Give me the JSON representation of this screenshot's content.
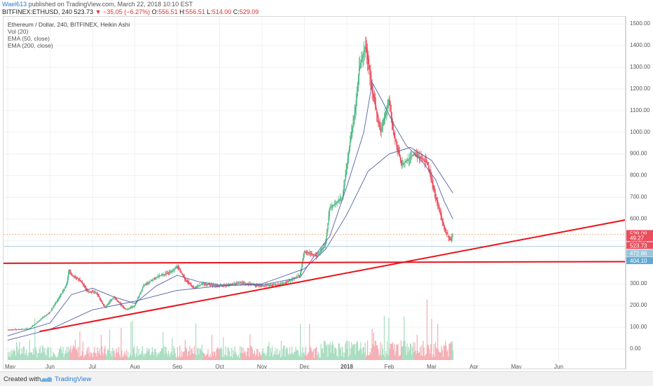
{
  "header": {
    "author": "Wael613",
    "published": "published on TradingView.com, March 22, 2018 10:10 EST",
    "symbol": "BITFINEX:ETHUSD, 240",
    "price": "523.73",
    "change": "−35.05 (−6.27%)",
    "o_label": "O:",
    "o_val": "556.51",
    "h_label": "H:",
    "h_val": "556.51",
    "l_label": "L:",
    "l_val": "514.00",
    "c_label": "C:",
    "c_val": "529.09"
  },
  "legend": {
    "title": "Ethereum / Dollar, 240, BITFINEX, Heikin Ashi",
    "vol": "Vol (20)",
    "ema50": "EMA (50, close)",
    "ema200": "EMA (200, close)"
  },
  "footer": {
    "created": "Created with",
    "brand": "TradingView"
  },
  "colors": {
    "up": "#53b987",
    "down": "#eb4d5c",
    "trend": "#e8141c",
    "ema": "#5462a8"
  },
  "chart_data": {
    "type": "candlestick",
    "y_ticks": [
      0,
      100,
      200,
      300,
      400,
      500,
      600,
      700,
      800,
      900,
      1000,
      1100,
      1200,
      1300,
      1400,
      1500
    ],
    "y_tick_labels": [
      "0.00",
      "100.00",
      "200.00",
      "300.00",
      "400.00",
      "500.00",
      "600.00",
      "700.00",
      "800.00",
      "900.00",
      "1000.00",
      "1100.00",
      "1200.00",
      "1300.00",
      "1400.00",
      "1500.00"
    ],
    "ylim": [
      -70,
      1520
    ],
    "x_ticks": [
      "May",
      "Jun",
      "Jul",
      "Aug",
      "Sep",
      "Oct",
      "Nov",
      "Dec",
      "2018",
      "Feb",
      "Mar",
      "Apr",
      "May",
      "Jun"
    ],
    "price_path": [
      {
        "t": 0,
        "p": 88
      },
      {
        "t": 0.5,
        "p": 92
      },
      {
        "t": 1,
        "p": 170
      },
      {
        "t": 1.2,
        "p": 230
      },
      {
        "t": 1.4,
        "p": 300
      },
      {
        "t": 1.45,
        "p": 370
      },
      {
        "t": 1.5,
        "p": 340
      },
      {
        "t": 1.7,
        "p": 320
      },
      {
        "t": 1.9,
        "p": 265
      },
      {
        "t": 2.1,
        "p": 260
      },
      {
        "t": 2.3,
        "p": 190
      },
      {
        "t": 2.5,
        "p": 240
      },
      {
        "t": 2.8,
        "p": 180
      },
      {
        "t": 3.0,
        "p": 200
      },
      {
        "t": 3.2,
        "p": 290
      },
      {
        "t": 3.5,
        "p": 330
      },
      {
        "t": 3.9,
        "p": 360
      },
      {
        "t": 4.0,
        "p": 380
      },
      {
        "t": 4.2,
        "p": 320
      },
      {
        "t": 4.4,
        "p": 280
      },
      {
        "t": 4.6,
        "p": 300
      },
      {
        "t": 5.0,
        "p": 290
      },
      {
        "t": 5.5,
        "p": 305
      },
      {
        "t": 6.0,
        "p": 290
      },
      {
        "t": 6.5,
        "p": 300
      },
      {
        "t": 6.9,
        "p": 340
      },
      {
        "t": 7.0,
        "p": 450
      },
      {
        "t": 7.3,
        "p": 430
      },
      {
        "t": 7.5,
        "p": 480
      },
      {
        "t": 7.6,
        "p": 650
      },
      {
        "t": 7.9,
        "p": 700
      },
      {
        "t": 8.1,
        "p": 980
      },
      {
        "t": 8.2,
        "p": 1100
      },
      {
        "t": 8.3,
        "p": 1300
      },
      {
        "t": 8.45,
        "p": 1400
      },
      {
        "t": 8.6,
        "p": 1200
      },
      {
        "t": 8.8,
        "p": 1000
      },
      {
        "t": 9.0,
        "p": 1150
      },
      {
        "t": 9.1,
        "p": 1000
      },
      {
        "t": 9.3,
        "p": 850
      },
      {
        "t": 9.6,
        "p": 900
      },
      {
        "t": 9.9,
        "p": 860
      },
      {
        "t": 10.1,
        "p": 700
      },
      {
        "t": 10.3,
        "p": 560
      },
      {
        "t": 10.45,
        "p": 500
      },
      {
        "t": 10.5,
        "p": 523.73
      }
    ],
    "ema50": [
      {
        "t": 0,
        "p": 60
      },
      {
        "t": 1,
        "p": 120
      },
      {
        "t": 1.5,
        "p": 250
      },
      {
        "t": 2,
        "p": 280
      },
      {
        "t": 2.5,
        "p": 240
      },
      {
        "t": 3,
        "p": 210
      },
      {
        "t": 3.5,
        "p": 290
      },
      {
        "t": 4,
        "p": 340
      },
      {
        "t": 4.5,
        "p": 310
      },
      {
        "t": 5,
        "p": 295
      },
      {
        "t": 6,
        "p": 295
      },
      {
        "t": 6.9,
        "p": 330
      },
      {
        "t": 7.2,
        "p": 420
      },
      {
        "t": 7.6,
        "p": 520
      },
      {
        "t": 8.0,
        "p": 750
      },
      {
        "t": 8.4,
        "p": 1000
      },
      {
        "t": 8.6,
        "p": 1230
      },
      {
        "t": 8.85,
        "p": 1140
      },
      {
        "t": 9.1,
        "p": 1040
      },
      {
        "t": 9.4,
        "p": 940
      },
      {
        "t": 9.8,
        "p": 860
      },
      {
        "t": 10.1,
        "p": 780
      },
      {
        "t": 10.3,
        "p": 680
      },
      {
        "t": 10.5,
        "p": 600
      }
    ],
    "ema200": [
      {
        "t": 0,
        "p": 40
      },
      {
        "t": 1,
        "p": 90
      },
      {
        "t": 2,
        "p": 180
      },
      {
        "t": 3,
        "p": 220
      },
      {
        "t": 4,
        "p": 270
      },
      {
        "t": 5,
        "p": 290
      },
      {
        "t": 6,
        "p": 300
      },
      {
        "t": 7,
        "p": 370
      },
      {
        "t": 7.5,
        "p": 460
      },
      {
        "t": 8,
        "p": 620
      },
      {
        "t": 8.5,
        "p": 820
      },
      {
        "t": 9,
        "p": 900
      },
      {
        "t": 9.5,
        "p": 930
      },
      {
        "t": 10,
        "p": 870
      },
      {
        "t": 10.5,
        "p": 720
      }
    ],
    "trendlines": [
      {
        "t1": -0.2,
        "p1": 395,
        "t2": 14.9,
        "p2": 403
      },
      {
        "t1": 0.75,
        "p1": 80,
        "t2": 14.7,
        "p2": 600
      }
    ],
    "h_lines": [
      {
        "p": 529.09,
        "color": "#f0a070",
        "style": "dotted"
      },
      {
        "p": 472.86,
        "color": "#9bc5da",
        "style": "solid"
      }
    ],
    "price_tags": [
      {
        "label": "529.09",
        "p": 529.09,
        "color": "#eb4d5c"
      },
      {
        "label": "49.27",
        "p": 510,
        "color": "#eb4d5c"
      },
      {
        "label": "523.73",
        "p": 474,
        "color": "#eb4d5c"
      },
      {
        "label": "472.86",
        "p": 438,
        "color": "#9bc5da"
      },
      {
        "label": "404.10",
        "p": 404.1,
        "color": "#62a8d4"
      }
    ]
  }
}
